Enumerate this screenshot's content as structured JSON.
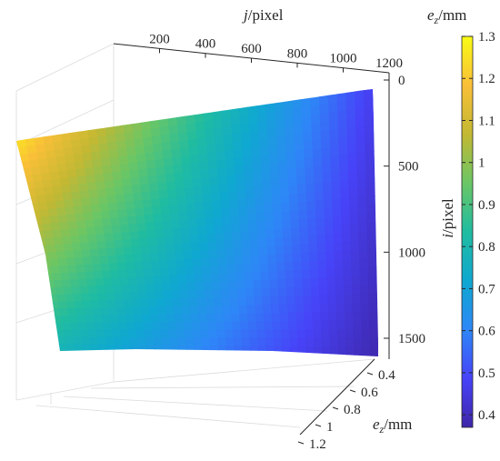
{
  "chart_data": {
    "type": "surface3d",
    "x_axis": {
      "label_var": "j",
      "label_unit": "/pixel",
      "ticks": [
        200,
        400,
        600,
        800,
        1000,
        1200
      ],
      "range": [
        0,
        1200
      ]
    },
    "y_axis": {
      "label_var": "i",
      "label_unit": "/pixel",
      "ticks": [
        0,
        500,
        1000,
        1500
      ],
      "range": [
        0,
        1600
      ]
    },
    "z_axis": {
      "label_var": "e",
      "label_sub": "z",
      "label_unit": "/mm",
      "ticks": [
        0.4,
        0.6,
        0.8,
        1,
        1.2
      ],
      "range": [
        0.35,
        1.25
      ]
    },
    "surface": {
      "j_range": [
        0,
        1200
      ],
      "i_range": [
        0,
        1600
      ],
      "corner_values": {
        "j0_i0": 1.25,
        "j1200_i0": 0.47,
        "j0_i1600": 0.78,
        "j1200_i1600": 0.38
      }
    },
    "colorbar": {
      "label_var": "e",
      "label_sub": "z",
      "label_unit": "/mm",
      "ticks": [
        1.3,
        1.2,
        1.1,
        1,
        0.9,
        0.8,
        0.7,
        0.6,
        0.5,
        0.4
      ],
      "range": [
        0.37,
        1.3
      ],
      "colormap": [
        "#3e26a8",
        "#4743f8",
        "#2e87f7",
        "#0fa8d0",
        "#20bca1",
        "#6bc665",
        "#c3b833",
        "#f9bf38",
        "#f9fb15"
      ]
    },
    "grid": true
  }
}
